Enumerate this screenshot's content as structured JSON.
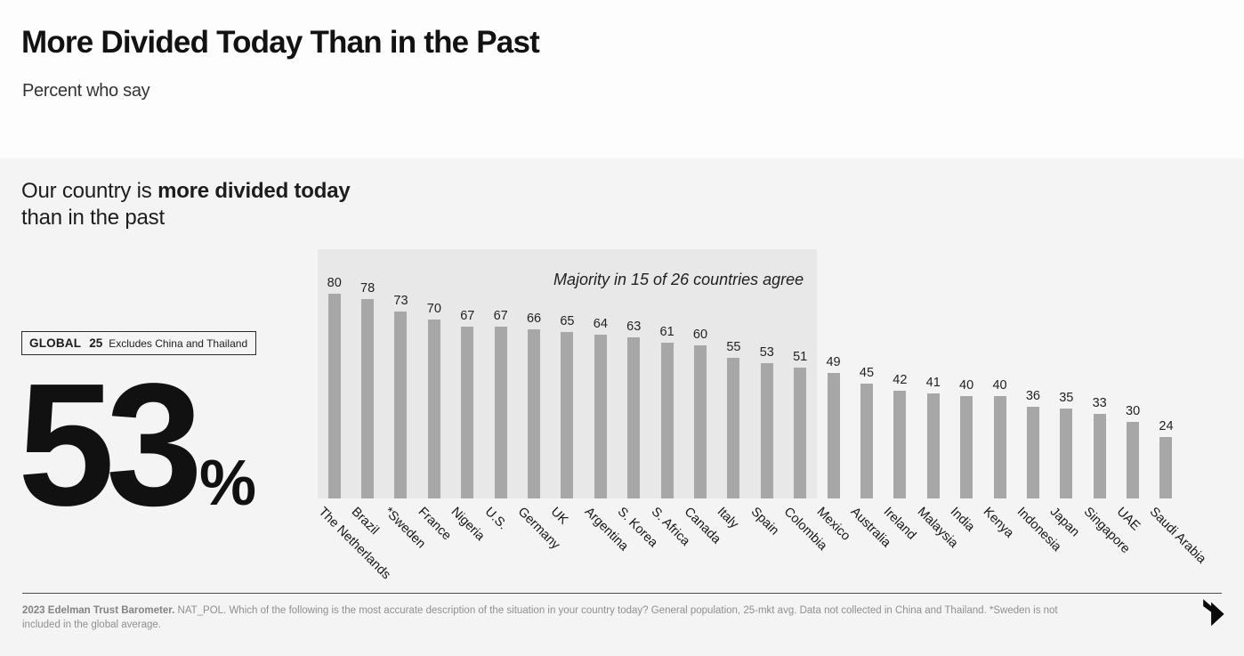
{
  "header": {
    "title": "More Divided Today Than in the Past",
    "subtitle": "Percent who say"
  },
  "statement": {
    "prefix": "Our country is ",
    "bold": "more divided today",
    "line2": "than in the past"
  },
  "global_badge": {
    "label": "GLOBAL",
    "count": "25",
    "note": "Excludes China and Thailand"
  },
  "global_stat": {
    "value": "53",
    "unit": "%"
  },
  "chart_data": {
    "type": "bar",
    "title": "",
    "xlabel": "",
    "ylabel": "",
    "ylim": [
      0,
      100
    ],
    "grid": false,
    "legend": false,
    "value_labels": true,
    "annotation": "Majority in 15 of 26 countries agree",
    "highlight_count": 15,
    "categories": [
      "The Netherlands",
      "Brazil",
      "*Sweden",
      "France",
      "Nigeria",
      "U.S.",
      "Germany",
      "UK",
      "Argentina",
      "S. Korea",
      "S. Africa",
      "Canada",
      "Italy",
      "Spain",
      "Colombia",
      "Mexico",
      "Australia",
      "Ireland",
      "Malaysia",
      "India",
      "Kenya",
      "Indonesia",
      "Japan",
      "Singapore",
      "UAE",
      "Saudi Arabia"
    ],
    "values": [
      80,
      78,
      73,
      70,
      67,
      67,
      66,
      65,
      64,
      63,
      61,
      60,
      55,
      53,
      51,
      49,
      45,
      42,
      41,
      40,
      40,
      36,
      35,
      33,
      30,
      24
    ],
    "bar_color": "#a7a7a7",
    "highlight_bg": "#e8e8e8",
    "slide_bg": "#f4f4f4"
  },
  "footer": {
    "bold": "2023 Edelman Trust Barometer.",
    "text": " NAT_POL. Which of the following is the most accurate description of the situation in your country today? General population, 25-mkt avg. Data not collected in China and Thailand. *Sweden is not included in the global average."
  }
}
